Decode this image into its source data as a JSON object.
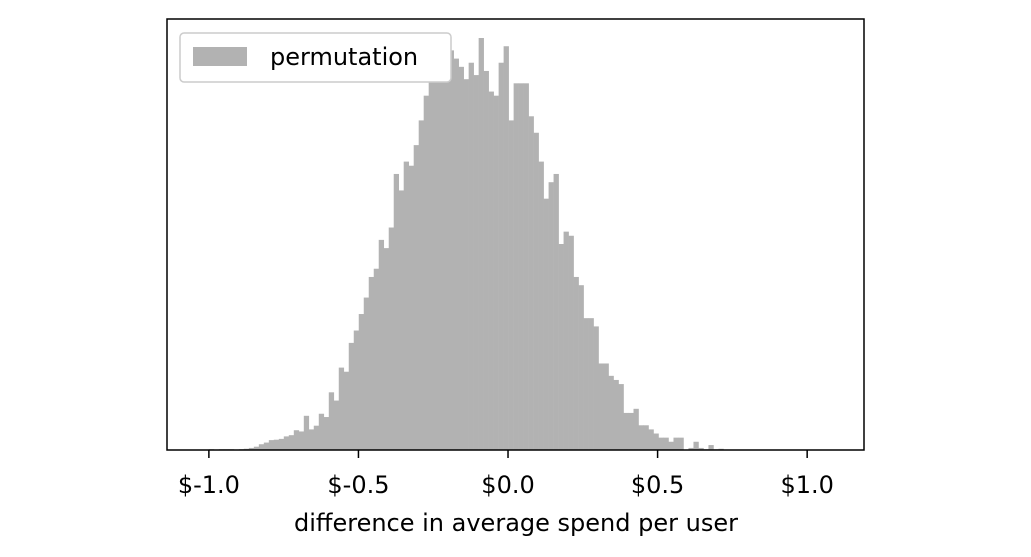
{
  "chart_data": {
    "type": "bar",
    "title": "",
    "xlabel": "difference in average spend per user",
    "ylabel": "",
    "xlim": [
      -1.14,
      1.19
    ],
    "ylim": [
      0,
      1.0
    ],
    "y_ticks_shown": false,
    "grid": false,
    "legend_position": "top-left",
    "bar_color": "#b2b2b2",
    "x_ticks": [
      {
        "value": -1.0,
        "label": "$-1.0"
      },
      {
        "value": -0.5,
        "label": "$-0.5"
      },
      {
        "value": 0.0,
        "label": "$0.0"
      },
      {
        "value": 0.5,
        "label": "$0.5"
      },
      {
        "value": 1.0,
        "label": "$1.0"
      }
    ],
    "bin_start": -1.0,
    "bin_width": 0.0167,
    "series": [
      {
        "name": "permutation",
        "values": [
          0.002,
          0.0,
          0.002,
          0.002,
          0.002,
          0.0,
          0.002,
          0.003,
          0.005,
          0.008,
          0.014,
          0.018,
          0.024,
          0.025,
          0.027,
          0.033,
          0.036,
          0.048,
          0.045,
          0.083,
          0.05,
          0.059,
          0.088,
          0.08,
          0.14,
          0.12,
          0.2,
          0.19,
          0.26,
          0.29,
          0.33,
          0.37,
          0.42,
          0.44,
          0.51,
          0.49,
          0.54,
          0.67,
          0.63,
          0.7,
          0.69,
          0.74,
          0.8,
          0.86,
          0.93,
          0.94,
          0.97,
          1.0,
          0.97,
          0.95,
          0.93,
          0.9,
          0.94,
          0.91,
          1.0,
          0.92,
          0.87,
          0.86,
          0.94,
          0.98,
          0.8,
          0.89,
          0.89,
          0.89,
          0.81,
          0.77,
          0.7,
          0.61,
          0.65,
          0.67,
          0.5,
          0.53,
          0.52,
          0.42,
          0.4,
          0.32,
          0.32,
          0.3,
          0.21,
          0.21,
          0.18,
          0.17,
          0.16,
          0.09,
          0.09,
          0.1,
          0.06,
          0.06,
          0.05,
          0.04,
          0.03,
          0.03,
          0.02,
          0.03,
          0.03,
          0.0,
          0.005,
          0.02,
          0.005,
          0.002,
          0.012,
          0.002,
          0.003
        ]
      }
    ]
  }
}
